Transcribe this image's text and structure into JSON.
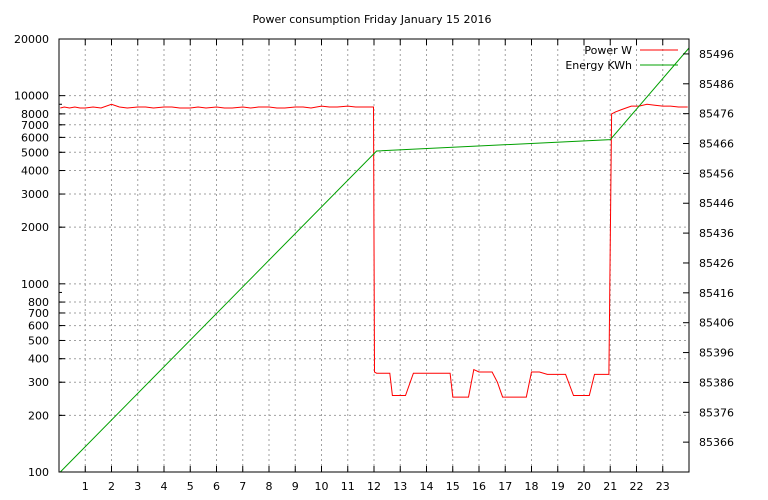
{
  "chart_data": {
    "type": "line",
    "title": "Power consumption Friday January 15 2016",
    "xlabel": "",
    "ylabel": "",
    "y2label": "",
    "xlim": [
      0,
      24
    ],
    "x_ticks": [
      "1",
      "2",
      "3",
      "4",
      "5",
      "6",
      "7",
      "8",
      "9",
      "10",
      "11",
      "12",
      "13",
      "14",
      "15",
      "16",
      "17",
      "18",
      "19",
      "20",
      "21",
      "22",
      "23"
    ],
    "y_scale": "log",
    "ylim": [
      100,
      20000
    ],
    "y_ticks": [
      "100",
      "200",
      "300",
      "400",
      "500",
      "600",
      "700",
      "800",
      "1000",
      "2000",
      "3000",
      "4000",
      "5000",
      "6000",
      "7000",
      "8000",
      "10000",
      "20000"
    ],
    "y2lim": [
      85356,
      85501
    ],
    "y2_ticks": [
      "85366",
      "85376",
      "85386",
      "85396",
      "85406",
      "85416",
      "85426",
      "85436",
      "85446",
      "85456",
      "85466",
      "85476",
      "85486",
      "85496"
    ],
    "grid": true,
    "legend_position": "top-right",
    "series": [
      {
        "name": "Power W",
        "axis": "left",
        "color": "#ff0000",
        "x": [
          0.05,
          0.2,
          0.4,
          0.6,
          0.8,
          1,
          1.3,
          1.6,
          2,
          2.3,
          2.6,
          3,
          3.3,
          3.6,
          4,
          4.3,
          4.6,
          5,
          5.3,
          5.6,
          6,
          6.3,
          6.6,
          7,
          7.3,
          7.6,
          8,
          8.3,
          8.6,
          9,
          9.3,
          9.6,
          10,
          10.3,
          10.6,
          11,
          11.3,
          11.6,
          11.98,
          12.02,
          12.1,
          12.3,
          12.6,
          12.7,
          13.0,
          13.2,
          13.5,
          13.8,
          14.1,
          14.4,
          14.6,
          14.9,
          15,
          15.3,
          15.6,
          15.8,
          16,
          16.3,
          16.5,
          16.7,
          16.9,
          17.1,
          17.5,
          17.8,
          18,
          18.3,
          18.6,
          19,
          19.3,
          19.6,
          19.9,
          20.2,
          20.4,
          20.6,
          20.95,
          21.05,
          21.2,
          21.4,
          21.6,
          21.8,
          22.1,
          22.4,
          22.7,
          23,
          23.3,
          23.6,
          23.95
        ],
        "y": [
          8600,
          8700,
          8600,
          8700,
          8600,
          8600,
          8700,
          8600,
          9000,
          8700,
          8600,
          8700,
          8700,
          8600,
          8700,
          8700,
          8600,
          8600,
          8700,
          8600,
          8700,
          8600,
          8600,
          8700,
          8600,
          8700,
          8700,
          8600,
          8600,
          8700,
          8700,
          8600,
          8800,
          8700,
          8700,
          8800,
          8700,
          8700,
          8700,
          340,
          335,
          335,
          335,
          255,
          255,
          255,
          335,
          335,
          335,
          335,
          335,
          335,
          250,
          250,
          250,
          350,
          340,
          340,
          340,
          300,
          250,
          250,
          250,
          250,
          340,
          340,
          330,
          330,
          330,
          255,
          255,
          255,
          330,
          330,
          330,
          8000,
          8200,
          8400,
          8600,
          8800,
          8800,
          9000,
          8900,
          8800,
          8800,
          8700,
          8700
        ]
      },
      {
        "name": "Energy KWh",
        "axis": "right",
        "color": "#00a000",
        "x": [
          0.05,
          12.1,
          21.0,
          24.0
        ],
        "y": [
          85356,
          85463.5,
          85467.3,
          85498
        ]
      }
    ]
  }
}
